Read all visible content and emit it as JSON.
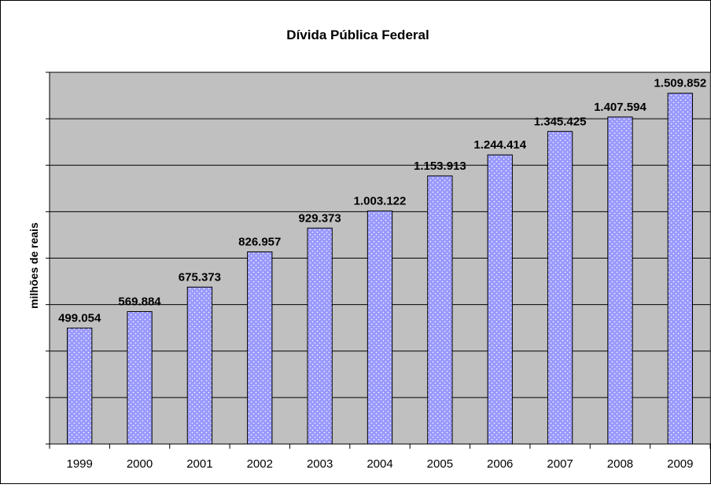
{
  "chart_data": {
    "type": "bar",
    "title": "Dívida Pública Federal",
    "xlabel": "",
    "ylabel": "milhões de reais",
    "categories": [
      "1999",
      "2000",
      "2001",
      "2002",
      "2003",
      "2004",
      "2005",
      "2006",
      "2007",
      "2008",
      "2009"
    ],
    "values": [
      499054,
      569884,
      675373,
      826957,
      929373,
      1003122,
      1153913,
      1244414,
      1345425,
      1407594,
      1509852
    ],
    "data_labels": [
      "499.054",
      "569.884",
      "675.373",
      "826.957",
      "929.373",
      "1.003.122",
      "1.153.913",
      "1.244.414",
      "1.345.425",
      "1.407.594",
      "1.509.852"
    ],
    "ylim": [
      0,
      1600000
    ],
    "grid": true,
    "legend": "none",
    "colors": {
      "plot_background": "#c0c0c0",
      "bar_fill": "#9999ff",
      "bar_dots": "#ffffff",
      "bar_border": "#000000",
      "gridline": "#000000",
      "axis": "#000000"
    }
  }
}
